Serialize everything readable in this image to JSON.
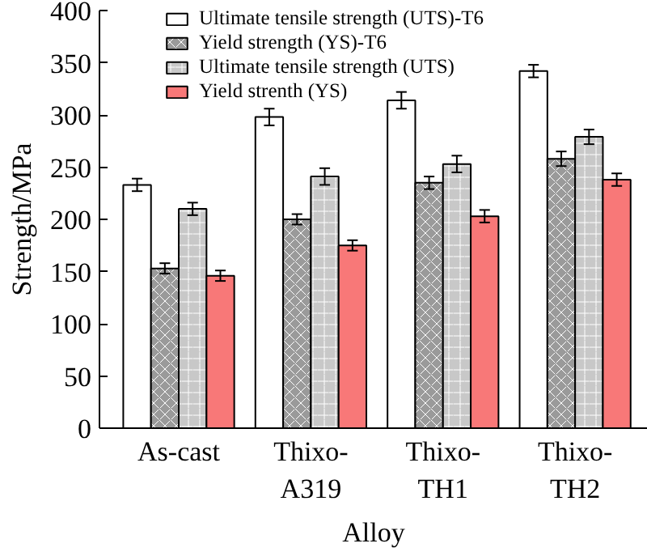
{
  "chart_data": {
    "type": "bar",
    "xlabel": "Alloy",
    "ylabel": "Strength/MPa",
    "categories": [
      "As-cast",
      "Thixo-\nA319",
      "Thixo-\nTH1",
      "Thixo-\nTH2"
    ],
    "series": [
      {
        "name": "Ultimate tensile strength (UTS)-T6",
        "color": "#ffffff",
        "values": [
          233,
          298,
          314,
          342
        ],
        "errors": [
          6,
          8,
          8,
          6
        ]
      },
      {
        "name": "Yield strength (YS)-T6",
        "color": "#9a9a9a",
        "values": [
          153,
          200,
          235,
          258
        ],
        "errors": [
          5,
          5,
          6,
          7
        ]
      },
      {
        "name": "Ultimate tensile strength (UTS)",
        "color": "#c8c8c8",
        "values": [
          210,
          241,
          253,
          279
        ],
        "errors": [
          6,
          8,
          8,
          7
        ]
      },
      {
        "name": "Yield strenth (YS)",
        "color": "#f87878",
        "values": [
          146,
          175,
          203,
          238
        ],
        "errors": [
          5,
          5,
          6,
          6
        ]
      }
    ],
    "ylim": [
      0,
      400
    ],
    "yticks": [
      0,
      50,
      100,
      150,
      200,
      250,
      300,
      350,
      400
    ],
    "grid": false,
    "legend": "top left"
  }
}
